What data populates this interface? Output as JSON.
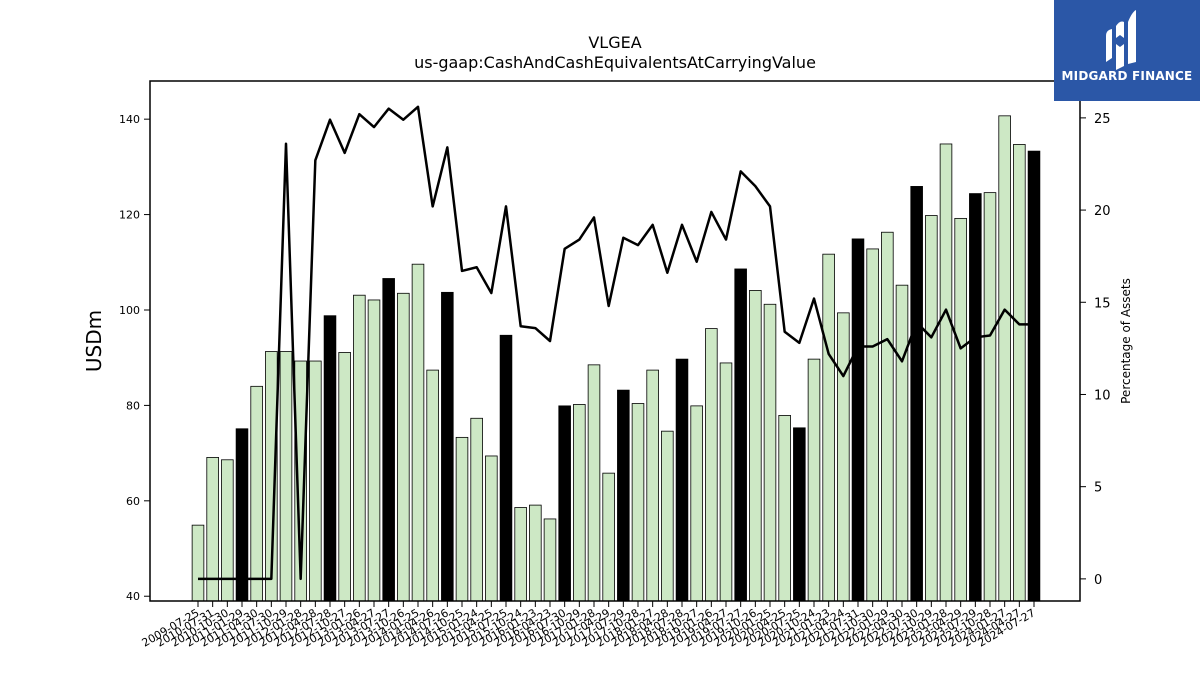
{
  "chart_data": {
    "type": "bar",
    "title": "VLGEA",
    "subtitle": "us-gaap:CashAndCashEquivalentsAtCarryingValue",
    "ylabel": "USDm",
    "y2label": "Percentage of Assets",
    "ylim": [
      39,
      148
    ],
    "y2lim": [
      -1.2,
      27
    ],
    "yticks": [
      40,
      60,
      80,
      100,
      120,
      140
    ],
    "y2ticks": [
      0,
      5,
      10,
      15,
      20,
      25
    ],
    "grid": false,
    "bar_colors": {
      "quarter": "#cde8c5",
      "year_end": "#000000"
    },
    "line_color": "#000000",
    "categories": [
      "2009-07-25",
      "2010-07-31",
      "2010-10-30",
      "2011-01-29",
      "2011-04-30",
      "2011-07-30",
      "2011-10-29",
      "2012-01-28",
      "2012-04-28",
      "2012-07-28",
      "2012-10-27",
      "2013-01-26",
      "2013-04-27",
      "2013-07-27",
      "2013-10-26",
      "2014-01-25",
      "2014-04-26",
      "2014-07-26",
      "2014-10-25",
      "2015-01-24",
      "2015-04-25",
      "2015-07-25",
      "2015-10-24",
      "2016-01-23",
      "2016-04-23",
      "2016-07-30",
      "2016-10-29",
      "2017-01-28",
      "2017-04-29",
      "2017-07-29",
      "2017-10-28",
      "2018-01-27",
      "2018-04-28",
      "2018-07-28",
      "2018-10-27",
      "2019-01-26",
      "2019-04-27",
      "2019-07-27",
      "2019-10-26",
      "2020-01-25",
      "2020-04-25",
      "2020-07-25",
      "2020-10-24",
      "2021-01-23",
      "2021-04-24",
      "2021-07-31",
      "2021-10-30",
      "2022-01-29",
      "2022-04-30",
      "2022-07-30",
      "2022-10-29",
      "2023-01-28",
      "2023-04-29",
      "2023-07-29",
      "2023-10-28",
      "2024-01-27",
      "2024-04-27",
      "2024-07-27"
    ],
    "year_end": [
      false,
      false,
      false,
      true,
      false,
      false,
      false,
      false,
      false,
      true,
      false,
      false,
      false,
      true,
      false,
      false,
      false,
      true,
      false,
      false,
      false,
      true,
      false,
      false,
      false,
      true,
      false,
      false,
      false,
      true,
      false,
      false,
      false,
      true,
      false,
      false,
      false,
      true,
      false,
      false,
      false,
      true,
      false,
      false,
      false,
      true,
      false,
      false,
      false,
      true,
      false,
      false,
      false,
      true,
      false,
      false,
      false,
      true
    ],
    "series": [
      {
        "type": "bar",
        "values": [
          54.9,
          69.1,
          68.6,
          75.1,
          84,
          91.3,
          91.3,
          89.3,
          89.3,
          98.8,
          91.1,
          103.1,
          102.1,
          106.6,
          103.5,
          109.6,
          87.4,
          103.7,
          73.3,
          77.3,
          69.4,
          94.7,
          58.6,
          59.1,
          56.2,
          79.9,
          80.2,
          88.5,
          65.8,
          83.2,
          80.4,
          87.4,
          74.6,
          89.7,
          79.9,
          96.1,
          88.9,
          108.6,
          104.1,
          101.2,
          77.9,
          75.3,
          89.7,
          111.7,
          99.4,
          114.9,
          112.8,
          116.3,
          105.2,
          125.9,
          119.8,
          134.8,
          119.2,
          124.4,
          124.6,
          140.7,
          134.7,
          133.3
        ]
      },
      {
        "type": "line",
        "values": [
          0,
          0,
          0,
          0,
          0,
          0,
          23.6,
          0,
          22.7,
          24.9,
          23.1,
          25.2,
          24.5,
          25.5,
          24.9,
          25.6,
          20.2,
          23.4,
          16.7,
          16.9,
          15.5,
          20.2,
          13.7,
          13.6,
          12.9,
          17.9,
          18.4,
          19.6,
          14.8,
          18.5,
          18.1,
          19.2,
          16.6,
          19.2,
          17.2,
          19.9,
          18.4,
          22.1,
          21.3,
          20.2,
          13.4,
          12.8,
          15.2,
          12.2,
          11.0,
          12.6,
          12.6,
          13.0,
          11.8,
          13.9,
          13.1,
          14.6,
          12.5,
          13.1,
          13.2,
          14.6,
          13.8,
          13.8
        ]
      }
    ]
  },
  "logo": {
    "text": "MIDGARD FINANCE"
  }
}
